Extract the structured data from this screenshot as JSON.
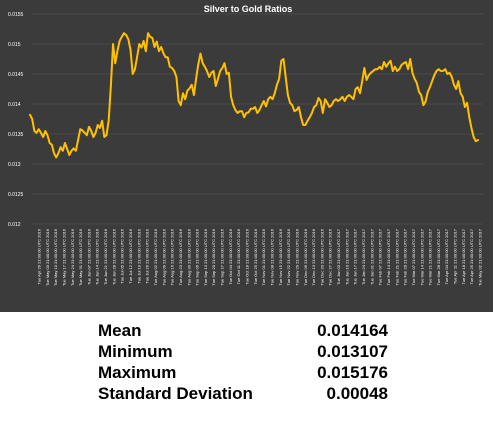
{
  "chart_data": {
    "type": "line",
    "title": "Silver to Gold Ratios",
    "xlabel": "",
    "ylabel": "",
    "ylim": [
      0.012,
      0.0155
    ],
    "yticks": [
      "0.0155",
      "0.015",
      "0.0145",
      "0.014",
      "0.0135",
      "0.013",
      "0.0125",
      "0.012"
    ],
    "yticks_values": [
      0.0155,
      0.015,
      0.0145,
      0.014,
      0.0135,
      0.013,
      0.0125,
      0.012
    ],
    "grid": true,
    "legend": "none",
    "colors": {
      "background": "#3b3b3b",
      "line": "#ffc000",
      "grid": "#5a5a5a",
      "text": "#ffffff"
    },
    "x_tick_labels": [
      "Tue Apr 26 21:00:00 UTC 2016",
      "Tue May 03 21:00:00 UTC 2016",
      "Tue May 10 21:00:00 UTC 2016",
      "Tue May 17 21:00:00 UTC 2016",
      "Tue May 24 21:00:00 UTC 2016",
      "Tue May 31 21:00:00 UTC 2016",
      "Tue Jun 07 21:00:00 UTC 2016",
      "Tue Jun 14 21:00:00 UTC 2016",
      "Tue Jun 21 21:00:00 UTC 2016",
      "Tue Jun 28 21:00:00 UTC 2016",
      "Tue Jul 05 21:00:00 UTC 2016",
      "Tue Jul 12 21:00:00 UTC 2016",
      "Tue Jul 19 21:00:00 UTC 2016",
      "Tue Jul 26 21:00:00 UTC 2016",
      "Tue Aug 02 21:00:00 UTC 2016",
      "Tue Aug 09 21:00:00 UTC 2016",
      "Tue Aug 16 21:00:00 UTC 2016",
      "Tue Aug 23 21:00:00 UTC 2016",
      "Tue Aug 30 21:00:00 UTC 2016",
      "Tue Sep 06 21:00:00 UTC 2016",
      "Tue Sep 13 21:00:00 UTC 2016",
      "Tue Sep 20 21:00:00 UTC 2016",
      "Tue Sep 27 21:00:00 UTC 2016",
      "Tue Oct 04 21:00:00 UTC 2016",
      "Tue Oct 11 21:00:00 UTC 2016",
      "Tue Oct 18 21:00:00 UTC 2016",
      "Tue Oct 25 21:00:00 UTC 2016",
      "Tue Nov 01 21:00:00 UTC 2016",
      "Tue Nov 08 21:00:00 UTC 2016",
      "Tue Nov 15 21:00:00 UTC 2016",
      "Tue Nov 22 21:00:00 UTC 2016",
      "Tue Nov 29 21:00:00 UTC 2016",
      "Tue Dec 06 21:00:00 UTC 2016",
      "Tue Dec 13 21:00:00 UTC 2016",
      "Tue Dec 20 21:00:00 UTC 2016",
      "Tue Dec 27 21:00:00 UTC 2016",
      "Tue Jan 03 21:00:00 UTC 2017",
      "Tue Jan 10 21:00:00 UTC 2017",
      "Tue Jan 17 21:00:00 UTC 2017",
      "Tue Jan 24 21:00:00 UTC 2017",
      "Tue Jan 31 21:00:00 UTC 2017",
      "Tue Feb 07 21:00:00 UTC 2017",
      "Tue Feb 14 21:00:00 UTC 2017",
      "Tue Feb 21 21:00:00 UTC 2017",
      "Tue Feb 28 21:00:00 UTC 2017",
      "Tue Mar 07 21:00:00 UTC 2017",
      "Tue Mar 14 21:00:00 UTC 2017",
      "Tue Mar 21 21:00:00 UTC 2017",
      "Tue Mar 28 21:00:00 UTC 2017",
      "Tue Apr 04 21:00:00 UTC 2017",
      "Tue Apr 11 21:00:00 UTC 2017",
      "Tue Apr 18 21:00:00 UTC 2017",
      "Tue Apr 25 21:00:00 UTC 2017",
      "Tue May 02 21:00:00 UTC 2017"
    ],
    "series": [
      {
        "values": [
          0.01382,
          0.01375,
          0.01355,
          0.01352,
          0.01358,
          0.01352,
          0.01345,
          0.01355,
          0.01348,
          0.01335,
          0.01332,
          0.01318,
          0.01311,
          0.01318,
          0.01328,
          0.01322,
          0.01335,
          0.01325,
          0.01315,
          0.01322,
          0.01326,
          0.01322,
          0.0134,
          0.01358,
          0.01356,
          0.01352,
          0.01348,
          0.01362,
          0.01355,
          0.01345,
          0.01352,
          0.01365,
          0.0136,
          0.01372,
          0.01345,
          0.01348,
          0.01372,
          0.0143,
          0.015,
          0.01468,
          0.01488,
          0.01505,
          0.01512,
          0.01518,
          0.01515,
          0.01508,
          0.0149,
          0.0145,
          0.01458,
          0.01478,
          0.015,
          0.01494,
          0.01505,
          0.01488,
          0.01518,
          0.01512,
          0.0151,
          0.01495,
          0.01504,
          0.01488,
          0.01495,
          0.01485,
          0.01478,
          0.01478,
          0.01462,
          0.0146,
          0.01455,
          0.01445,
          0.01405,
          0.01398,
          0.01418,
          0.01408,
          0.01422,
          0.01426,
          0.01432,
          0.01415,
          0.01442,
          0.01466,
          0.01484,
          0.01468,
          0.01462,
          0.01455,
          0.01445,
          0.01452,
          0.01455,
          0.0143,
          0.01442,
          0.01455,
          0.0146,
          0.01468,
          0.0145,
          0.01452,
          0.01412,
          0.01398,
          0.0139,
          0.01385,
          0.01388,
          0.01388,
          0.01378,
          0.01385,
          0.01386,
          0.01392,
          0.01392,
          0.01395,
          0.01385,
          0.0139,
          0.01398,
          0.01405,
          0.01396,
          0.01408,
          0.01412,
          0.01408,
          0.01418,
          0.01432,
          0.01442,
          0.01472,
          0.01475,
          0.01445,
          0.01415,
          0.01402,
          0.01398,
          0.01388,
          0.0139,
          0.01395,
          0.01378,
          0.01365,
          0.01365,
          0.01372,
          0.01378,
          0.01385,
          0.01395,
          0.01398,
          0.0141,
          0.01405,
          0.01385,
          0.01408,
          0.01402,
          0.01395,
          0.01398,
          0.01405,
          0.01408,
          0.01405,
          0.01408,
          0.01412,
          0.01405,
          0.01412,
          0.01415,
          0.01412,
          0.01408,
          0.01425,
          0.01428,
          0.01418,
          0.01438,
          0.0146,
          0.0144,
          0.01448,
          0.01452,
          0.01455,
          0.01458,
          0.01458,
          0.01462,
          0.01458,
          0.0147,
          0.01462,
          0.01468,
          0.01472,
          0.01455,
          0.01462,
          0.01455,
          0.01458,
          0.01465,
          0.01468,
          0.0147,
          0.01458,
          0.01475,
          0.01452,
          0.01442,
          0.01435,
          0.0142,
          0.01415,
          0.01398,
          0.01404,
          0.0142,
          0.01428,
          0.01438,
          0.01448,
          0.01455,
          0.01458,
          0.01455,
          0.01455,
          0.01458,
          0.0145,
          0.01452,
          0.01445,
          0.01432,
          0.01425,
          0.01438,
          0.01418,
          0.01412,
          0.01395,
          0.01402,
          0.01378,
          0.0136,
          0.01345,
          0.01338,
          0.0134
        ]
      }
    ]
  },
  "stats": [
    {
      "label": "Mean",
      "value": "0.014164"
    },
    {
      "label": "Minimum",
      "value": "0.013107"
    },
    {
      "label": "Maximum",
      "value": "0.015176"
    },
    {
      "label": "Standard Deviation",
      "value": "0.00048"
    }
  ]
}
